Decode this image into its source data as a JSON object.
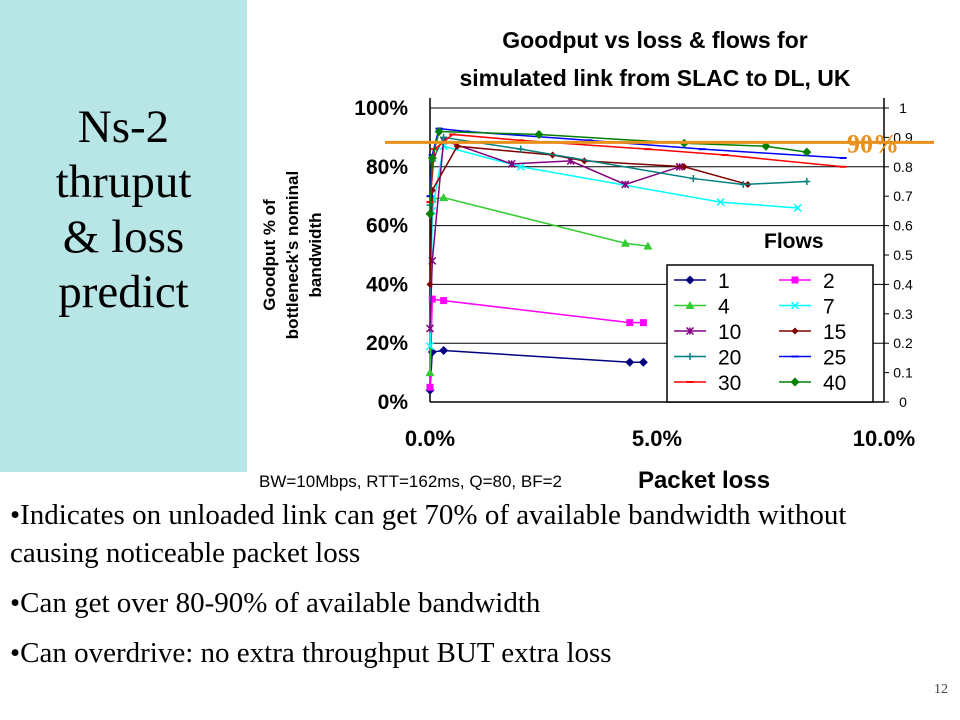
{
  "slide": {
    "title_lines": [
      "Ns-2",
      "thruput",
      "& loss",
      "predict"
    ],
    "bullets": [
      "•Indicates on unloaded link can get 70% of available bandwidth without causing noticeable packet loss",
      "•Can get over 80-90% of available bandwidth",
      "•Can overdrive: no extra throughput BUT extra loss"
    ],
    "page_number": "12",
    "colors": {
      "side_panel": "#b8e6e6",
      "annotation": "#e8901c"
    }
  },
  "chart_data": {
    "type": "line",
    "title": "Goodput vs loss & flows for simulated link from SLAC to DL, UK",
    "title_lines": [
      "Goodput vs loss & flows for",
      "simulated link from SLAC to DL, UK"
    ],
    "xlabel": "Packet loss",
    "ylabel": "Goodput % of bottleneck's nominal bandwidth",
    "ylabel_lines": [
      "Goodput % of",
      "bottleneck's nominal",
      "bandwidth"
    ],
    "caption": "BW=10Mbps, RTT=162ms, Q=80, BF=2",
    "xlim": [
      0,
      10
    ],
    "ylim": [
      0,
      100
    ],
    "y2lim": [
      0,
      1
    ],
    "x_ticks": [
      "0.0%",
      "5.0%",
      "10.0%"
    ],
    "y_ticks": [
      "0%",
      "20%",
      "40%",
      "60%",
      "80%",
      "100%"
    ],
    "y2_ticks": [
      "0",
      "0.1",
      "0.2",
      "0.3",
      "0.4",
      "0.5",
      "0.6",
      "0.7",
      "0.8",
      "0.9",
      "1"
    ],
    "grid": true,
    "legend": {
      "title": "Flows",
      "position": "lower-right"
    },
    "annotation": {
      "label": "90%",
      "y": 90
    },
    "series": [
      {
        "name": "1",
        "color": "#000080",
        "marker": "diamond",
        "points": [
          [
            0,
            4
          ],
          [
            0.05,
            17
          ],
          [
            0.3,
            17.5
          ],
          [
            4.4,
            13.5
          ],
          [
            4.7,
            13.5
          ]
        ]
      },
      {
        "name": "2",
        "color": "#ff00ff",
        "marker": "square",
        "points": [
          [
            0,
            5
          ],
          [
            0.05,
            35
          ],
          [
            0.3,
            34.5
          ],
          [
            4.4,
            27
          ],
          [
            4.7,
            27
          ]
        ]
      },
      {
        "name": "4",
        "color": "#33cc33",
        "marker": "triangle",
        "points": [
          [
            0,
            10
          ],
          [
            0.05,
            69
          ],
          [
            0.3,
            69.5
          ],
          [
            4.3,
            54
          ],
          [
            4.8,
            53
          ]
        ]
      },
      {
        "name": "7",
        "color": "#00ffff",
        "marker": "x",
        "points": [
          [
            0,
            19
          ],
          [
            0.05,
            65
          ],
          [
            0.3,
            87
          ],
          [
            2,
            80
          ],
          [
            6.4,
            68
          ],
          [
            8.1,
            66
          ]
        ]
      },
      {
        "name": "10",
        "color": "#800080",
        "marker": "star",
        "points": [
          [
            0,
            25
          ],
          [
            0.05,
            48
          ],
          [
            0.3,
            89
          ],
          [
            1.8,
            81
          ],
          [
            3.1,
            82
          ],
          [
            4.3,
            74
          ],
          [
            5.5,
            80
          ]
        ]
      },
      {
        "name": "15",
        "color": "#800000",
        "marker": "circle",
        "points": [
          [
            0,
            40
          ],
          [
            0.05,
            72
          ],
          [
            0.6,
            87
          ],
          [
            2.7,
            84
          ],
          [
            3.4,
            82
          ],
          [
            5.6,
            80
          ],
          [
            7,
            74
          ]
        ]
      },
      {
        "name": "20",
        "color": "#008080",
        "marker": "plus",
        "points": [
          [
            0,
            67
          ],
          [
            0.05,
            82
          ],
          [
            0.3,
            90
          ],
          [
            2,
            86
          ],
          [
            5.8,
            76
          ],
          [
            6.9,
            74
          ],
          [
            8.3,
            75
          ]
        ]
      },
      {
        "name": "25",
        "color": "#0000ff",
        "marker": "dash",
        "points": [
          [
            0,
            70
          ],
          [
            0.05,
            84
          ],
          [
            0.2,
            93
          ],
          [
            0.8,
            92
          ],
          [
            3.5,
            89
          ],
          [
            6,
            86
          ],
          [
            9.1,
            83
          ]
        ]
      },
      {
        "name": "30",
        "color": "#ff0000",
        "marker": "dash",
        "points": [
          [
            0,
            68
          ],
          [
            0.1,
            86
          ],
          [
            0.5,
            91
          ],
          [
            2,
            89
          ],
          [
            4.8,
            86
          ],
          [
            6.5,
            84
          ],
          [
            9.1,
            80
          ]
        ]
      },
      {
        "name": "40",
        "color": "#008000",
        "marker": "diamond",
        "points": [
          [
            0,
            64
          ],
          [
            0.05,
            83
          ],
          [
            0.2,
            92
          ],
          [
            2.4,
            91
          ],
          [
            5.6,
            88
          ],
          [
            7.4,
            87
          ],
          [
            8.3,
            85
          ]
        ]
      }
    ]
  }
}
